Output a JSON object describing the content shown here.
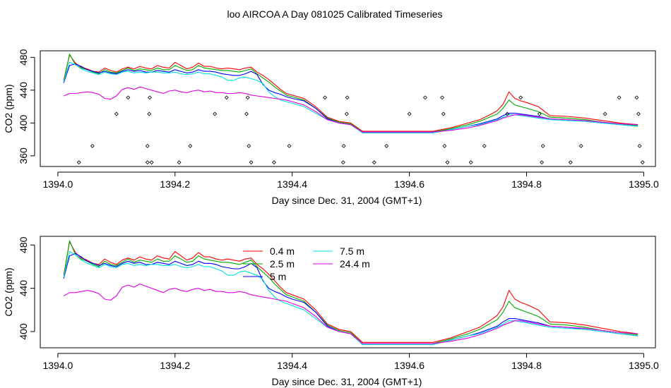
{
  "title": "loo AIRCOA A  Day 081025  Calibrated Timeseries",
  "chart_data": [
    {
      "type": "line",
      "panel": "top",
      "xlabel": "Day since Dec. 31, 2004 (GMT+1)",
      "ylabel": "CO2 (ppm)",
      "xlim": [
        1393.97,
        1395.02
      ],
      "ylim": [
        347,
        488
      ],
      "xticks": [
        1394.0,
        1394.2,
        1394.4,
        1394.6,
        1394.8,
        1395.0
      ],
      "xtick_labels": [
        "1394.0",
        "1394.2",
        "1394.4",
        "1394.6",
        "1394.8",
        "1395.0"
      ],
      "yticks": [
        360,
        400,
        440,
        480
      ],
      "ytick_labels": [
        "360",
        "400",
        "440",
        "480"
      ],
      "grid": false,
      "legend": "none",
      "x": [
        1394.01,
        1394.02,
        1394.03,
        1394.04,
        1394.05,
        1394.06,
        1394.07,
        1394.08,
        1394.09,
        1394.1,
        1394.11,
        1394.12,
        1394.13,
        1394.14,
        1394.15,
        1394.16,
        1394.17,
        1394.18,
        1394.19,
        1394.2,
        1394.21,
        1394.22,
        1394.23,
        1394.24,
        1394.25,
        1394.26,
        1394.27,
        1394.28,
        1394.29,
        1394.3,
        1394.31,
        1394.32,
        1394.33,
        1394.34,
        1394.35,
        1394.36,
        1394.37,
        1394.38,
        1394.39,
        1394.4,
        1394.42,
        1394.44,
        1394.46,
        1394.48,
        1394.5,
        1394.52,
        1394.55,
        1394.58,
        1394.61,
        1394.64,
        1394.67,
        1394.7,
        1394.72,
        1394.74,
        1394.75,
        1394.76,
        1394.77,
        1394.78,
        1394.79,
        1394.8,
        1394.82,
        1394.84,
        1394.87,
        1394.9,
        1394.93,
        1394.96,
        1394.99
      ],
      "series": [
        {
          "color": "#ff0000",
          "values": [
            452,
            483,
            473,
            468,
            466,
            463,
            462,
            467,
            464,
            462,
            466,
            468,
            466,
            469,
            467,
            466,
            470,
            468,
            467,
            474,
            470,
            466,
            468,
            473,
            469,
            469,
            467,
            466,
            467,
            466,
            465,
            467,
            468,
            462,
            458,
            453,
            447,
            441,
            436,
            434,
            430,
            420,
            407,
            402,
            400,
            390,
            390,
            390,
            390,
            390,
            394,
            400,
            404,
            411,
            415,
            423,
            438,
            430,
            427,
            425,
            420,
            409,
            408,
            406,
            403,
            400,
            398
          ]
        },
        {
          "color": "#00aa00",
          "values": [
            450,
            484,
            471,
            467,
            465,
            462,
            460,
            465,
            462,
            461,
            464,
            467,
            464,
            466,
            465,
            464,
            467,
            465,
            465,
            470,
            467,
            464,
            465,
            470,
            467,
            466,
            465,
            464,
            464,
            463,
            462,
            464,
            466,
            460,
            455,
            450,
            444,
            439,
            434,
            432,
            428,
            418,
            406,
            401,
            399,
            389,
            389,
            389,
            389,
            389,
            393,
            398,
            402,
            408,
            411,
            418,
            428,
            422,
            420,
            418,
            414,
            407,
            406,
            404,
            401,
            399,
            397
          ]
        },
        {
          "color": "#0000ff",
          "values": [
            449,
            470,
            472,
            469,
            465,
            463,
            461,
            463,
            461,
            460,
            463,
            465,
            463,
            464,
            462,
            462,
            464,
            463,
            462,
            465,
            463,
            461,
            462,
            465,
            463,
            463,
            462,
            460,
            459,
            458,
            458,
            460,
            463,
            459,
            447,
            440,
            437,
            435,
            432,
            430,
            427,
            418,
            405,
            400,
            398,
            388,
            388,
            388,
            388,
            388,
            392,
            396,
            399,
            403,
            405,
            409,
            412,
            412,
            411,
            410,
            408,
            405,
            404,
            402,
            400,
            398,
            396
          ]
        },
        {
          "color": "#00e0e0",
          "values": [
            450,
            474,
            471,
            466,
            463,
            461,
            459,
            462,
            460,
            459,
            462,
            463,
            461,
            462,
            461,
            462,
            462,
            461,
            461,
            462,
            460,
            459,
            460,
            462,
            460,
            460,
            458,
            456,
            452,
            452,
            455,
            456,
            454,
            452,
            448,
            438,
            432,
            428,
            426,
            424,
            420,
            412,
            404,
            400,
            398,
            388,
            388,
            388,
            388,
            388,
            392,
            396,
            398,
            402,
            404,
            407,
            410,
            410,
            409,
            408,
            406,
            404,
            403,
            402,
            400,
            398,
            396
          ]
        },
        {
          "color": "#e000e0",
          "values": [
            433,
            436,
            436,
            437,
            438,
            437,
            435,
            430,
            429,
            433,
            441,
            443,
            441,
            444,
            442,
            440,
            438,
            436,
            439,
            440,
            438,
            437,
            439,
            440,
            438,
            439,
            437,
            437,
            436,
            436,
            437,
            436,
            434,
            433,
            432,
            431,
            430,
            429,
            428,
            426,
            422,
            414,
            404,
            400,
            398,
            389,
            389,
            389,
            389,
            389,
            391,
            394,
            397,
            401,
            403,
            406,
            408,
            410,
            410,
            409,
            407,
            405,
            404,
            403,
            401,
            399,
            398
          ]
        }
      ],
      "points": {
        "x": [
          1394.036,
          1394.059,
          1394.1,
          1394.12,
          1394.153,
          1394.153,
          1394.156,
          1394.157,
          1394.16,
          1394.207,
          1394.226,
          1394.268,
          1394.288,
          1394.322,
          1394.324,
          1394.326,
          1394.33,
          1394.369,
          1394.395,
          1394.456,
          1394.487,
          1394.488,
          1394.493,
          1394.494,
          1394.54,
          1394.561,
          1394.6,
          1394.627,
          1394.656,
          1394.658,
          1394.66,
          1394.665,
          1394.705,
          1394.728,
          1394.767,
          1394.79,
          1394.822,
          1394.826,
          1394.828,
          1394.875,
          1394.893,
          1394.934,
          1394.958,
          1394.988,
          1394.991,
          1394.993,
          1394.998
        ],
        "values": [
          352,
          372,
          411,
          431,
          352,
          372,
          411,
          431,
          352,
          352,
          372,
          411,
          431,
          411,
          431,
          372,
          352,
          352,
          372,
          431,
          352,
          372,
          411,
          431,
          352,
          372,
          411,
          431,
          431,
          411,
          372,
          352,
          352,
          372,
          411,
          431,
          411,
          352,
          372,
          352,
          372,
          411,
          431,
          431,
          411,
          372,
          352
        ]
      }
    },
    {
      "type": "line",
      "panel": "bottom",
      "xlabel": "Day since Dec. 31, 2004 (GMT+1)",
      "ylabel": "CO2 (ppm)",
      "xlim": [
        1393.97,
        1395.02
      ],
      "ylim": [
        385,
        488
      ],
      "xticks": [
        1394.0,
        1394.2,
        1394.4,
        1394.6,
        1394.8,
        1395.0
      ],
      "xtick_labels": [
        "1394.0",
        "1394.2",
        "1394.4",
        "1394.6",
        "1394.8",
        "1395.0"
      ],
      "yticks": [
        400,
        440,
        480
      ],
      "ytick_labels": [
        "400",
        "440",
        "480"
      ],
      "grid": false,
      "legend": "top-center",
      "legend_entries": [
        {
          "label": "0.4 m",
          "color": "#ff0000"
        },
        {
          "label": "2.5 m",
          "color": "#00aa00"
        },
        {
          "label": "5 m",
          "color": "#0000ff"
        },
        {
          "label": "7.5 m",
          "color": "#00e0e0"
        },
        {
          "label": "24.4 m",
          "color": "#e000e0"
        }
      ],
      "x": [
        1394.01,
        1394.02,
        1394.03,
        1394.04,
        1394.05,
        1394.06,
        1394.07,
        1394.08,
        1394.09,
        1394.1,
        1394.11,
        1394.12,
        1394.13,
        1394.14,
        1394.15,
        1394.16,
        1394.17,
        1394.18,
        1394.19,
        1394.2,
        1394.21,
        1394.22,
        1394.23,
        1394.24,
        1394.25,
        1394.26,
        1394.27,
        1394.28,
        1394.29,
        1394.3,
        1394.31,
        1394.32,
        1394.33,
        1394.34,
        1394.35,
        1394.36,
        1394.37,
        1394.38,
        1394.39,
        1394.4,
        1394.42,
        1394.44,
        1394.46,
        1394.48,
        1394.5,
        1394.52,
        1394.55,
        1394.58,
        1394.61,
        1394.64,
        1394.67,
        1394.7,
        1394.72,
        1394.74,
        1394.75,
        1394.76,
        1394.77,
        1394.78,
        1394.79,
        1394.8,
        1394.82,
        1394.84,
        1394.87,
        1394.9,
        1394.93,
        1394.96,
        1394.99
      ],
      "series": [
        {
          "name": "0.4 m",
          "color": "#ff0000",
          "values": [
            452,
            483,
            473,
            468,
            466,
            463,
            462,
            467,
            464,
            462,
            466,
            468,
            466,
            469,
            467,
            466,
            470,
            468,
            467,
            474,
            470,
            466,
            468,
            473,
            469,
            469,
            467,
            466,
            467,
            466,
            465,
            467,
            468,
            462,
            458,
            453,
            447,
            441,
            436,
            434,
            430,
            420,
            407,
            402,
            400,
            390,
            390,
            390,
            390,
            390,
            394,
            400,
            404,
            411,
            415,
            423,
            438,
            430,
            427,
            425,
            420,
            409,
            408,
            406,
            403,
            400,
            398
          ]
        },
        {
          "name": "2.5 m",
          "color": "#00aa00",
          "values": [
            450,
            484,
            471,
            467,
            465,
            462,
            460,
            465,
            462,
            461,
            464,
            467,
            464,
            466,
            465,
            464,
            467,
            465,
            465,
            470,
            467,
            464,
            465,
            470,
            467,
            466,
            465,
            464,
            464,
            463,
            462,
            464,
            466,
            460,
            455,
            450,
            444,
            439,
            434,
            432,
            428,
            418,
            406,
            401,
            399,
            389,
            389,
            389,
            389,
            389,
            393,
            398,
            402,
            408,
            411,
            418,
            428,
            422,
            420,
            418,
            414,
            407,
            406,
            404,
            401,
            399,
            397
          ]
        },
        {
          "name": "5 m",
          "color": "#0000ff",
          "values": [
            449,
            470,
            472,
            469,
            465,
            463,
            461,
            463,
            461,
            460,
            463,
            465,
            463,
            464,
            462,
            462,
            464,
            463,
            462,
            465,
            463,
            461,
            462,
            465,
            463,
            463,
            462,
            460,
            459,
            458,
            458,
            460,
            463,
            459,
            447,
            440,
            437,
            435,
            432,
            430,
            427,
            418,
            405,
            400,
            398,
            388,
            388,
            388,
            388,
            388,
            392,
            396,
            399,
            403,
            405,
            409,
            412,
            412,
            411,
            410,
            408,
            405,
            404,
            402,
            400,
            398,
            396
          ]
        },
        {
          "name": "7.5 m",
          "color": "#00e0e0",
          "values": [
            450,
            474,
            471,
            466,
            463,
            461,
            459,
            462,
            460,
            459,
            462,
            463,
            461,
            462,
            461,
            462,
            462,
            461,
            461,
            462,
            460,
            459,
            460,
            462,
            460,
            460,
            458,
            456,
            452,
            452,
            455,
            456,
            454,
            452,
            448,
            438,
            432,
            428,
            426,
            424,
            420,
            412,
            404,
            400,
            398,
            388,
            388,
            388,
            388,
            388,
            392,
            396,
            398,
            402,
            404,
            407,
            410,
            410,
            409,
            408,
            406,
            404,
            403,
            402,
            400,
            398,
            396
          ]
        },
        {
          "name": "24.4 m",
          "color": "#e000e0",
          "values": [
            433,
            436,
            436,
            437,
            438,
            437,
            435,
            430,
            429,
            433,
            441,
            443,
            441,
            444,
            442,
            440,
            438,
            436,
            439,
            440,
            438,
            437,
            439,
            440,
            438,
            439,
            437,
            437,
            436,
            436,
            437,
            436,
            434,
            433,
            432,
            431,
            430,
            429,
            428,
            426,
            422,
            414,
            404,
            400,
            398,
            389,
            389,
            389,
            389,
            389,
            391,
            394,
            397,
            401,
            403,
            406,
            408,
            410,
            410,
            409,
            407,
            405,
            404,
            403,
            401,
            399,
            398
          ]
        }
      ]
    }
  ]
}
